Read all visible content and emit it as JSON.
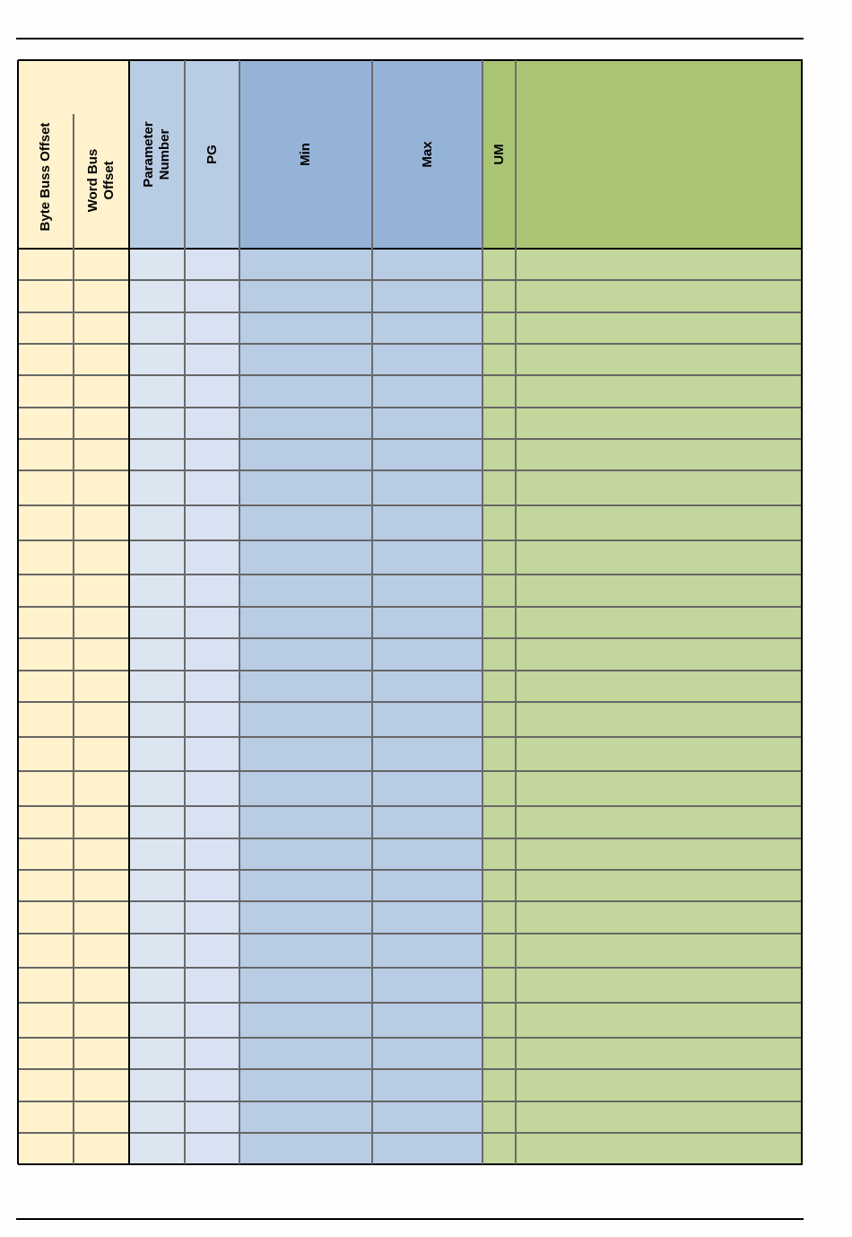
{
  "table": {
    "headers": [
      {
        "key": "byte",
        "label": "Byte Buss Offset"
      },
      {
        "key": "word",
        "label": "Word Bus\nOffset"
      },
      {
        "key": "param",
        "label": "Parameter\nNumber"
      },
      {
        "key": "pg",
        "label": "PG"
      },
      {
        "key": "min",
        "label": "Min"
      },
      {
        "key": "max",
        "label": "Max"
      },
      {
        "key": "um",
        "label": "UM"
      },
      {
        "key": "desc",
        "label": ""
      }
    ],
    "rows": [
      [],
      [],
      [],
      [],
      [],
      [],
      [],
      [],
      [],
      [],
      [],
      [],
      [],
      [],
      [],
      [],
      [],
      [],
      [],
      [],
      [],
      [],
      [],
      [],
      [],
      [],
      [],
      []
    ]
  },
  "colors": {
    "yellow": "#FFF2CC",
    "header_blue_light": "#B8CCE4",
    "header_blue": "#95B3D7",
    "body_blue_light_1": "#DCE6F1",
    "body_blue_light_2": "#D9E2F3",
    "body_blue": "#B8CCE4",
    "header_green": "#A9C574",
    "body_green": "#C3D69B"
  }
}
